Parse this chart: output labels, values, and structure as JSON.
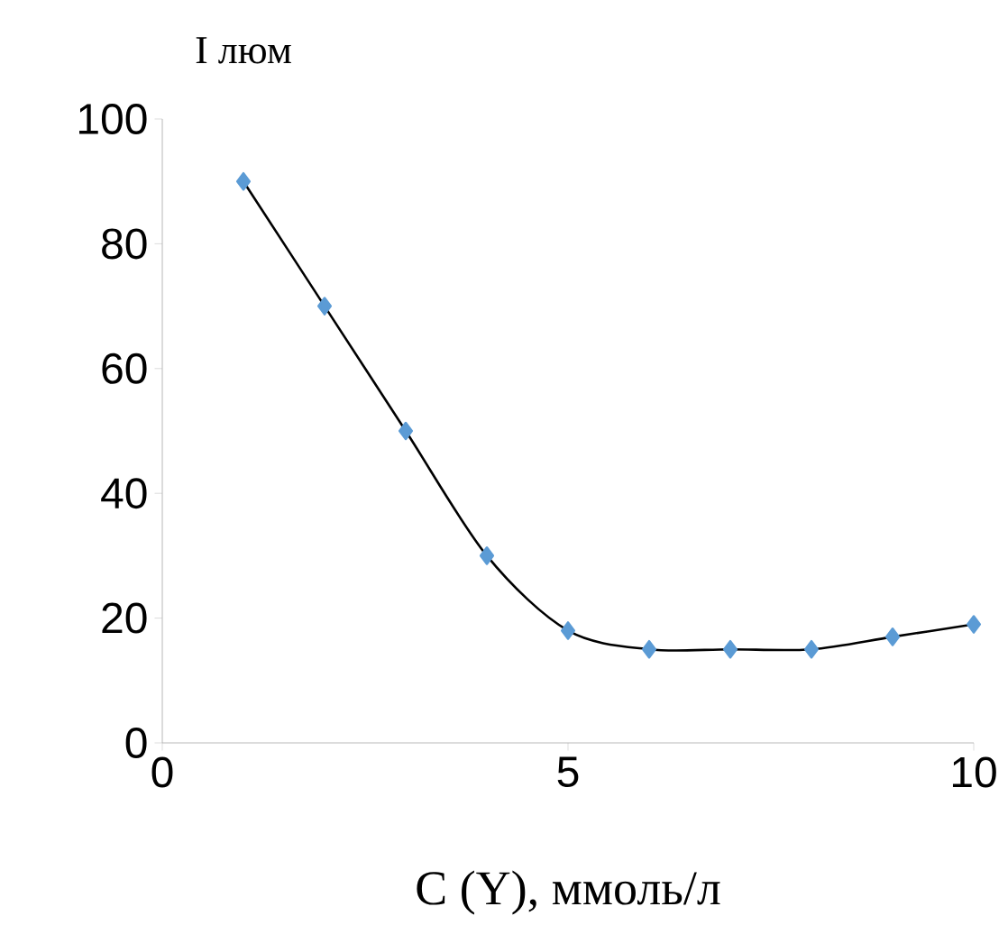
{
  "chart_data": {
    "type": "line",
    "xlabel": "C (Y), ммоль/л",
    "ylabel": "I люм",
    "x": [
      1,
      2,
      3,
      4,
      5,
      6,
      7,
      8,
      9,
      10
    ],
    "series": [
      {
        "color": "#5b9bd5",
        "values": [
          90,
          70,
          50,
          30,
          18,
          15,
          15,
          15,
          17,
          19
        ]
      }
    ],
    "xlim": [
      0,
      10
    ],
    "ylim": [
      0,
      100
    ],
    "xticks": [
      0,
      5,
      10
    ],
    "yticks": [
      0,
      20,
      40,
      60,
      80,
      100
    ],
    "marker": "diamond"
  }
}
